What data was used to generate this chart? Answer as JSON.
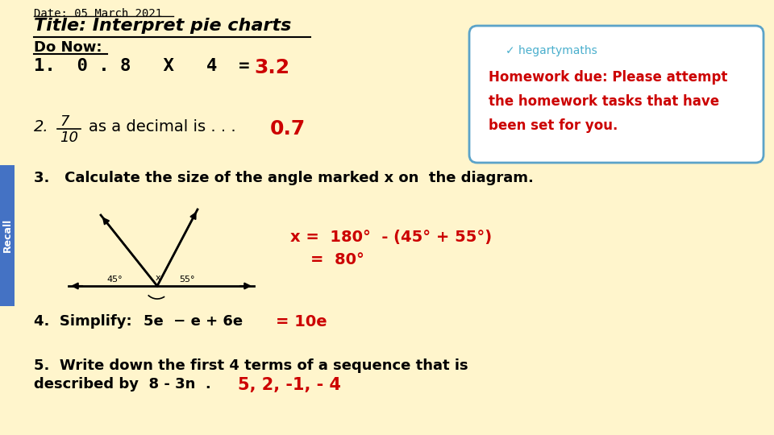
{
  "background_color": "#FFF5CC",
  "date_text": "Date: 05 March 2021",
  "title_text": "Title: Interpret pie charts",
  "do_now_text": "Do Now:",
  "q1_black": "1.  0 . 8   X   4  =",
  "q1_red": "3.2",
  "q2_italic_num": "7",
  "q2_italic_den": "10",
  "q2_black": "as a decimal is . . .",
  "q2_red": "0.7",
  "q3_black": "3.   Calculate the size of the angle marked x on  the diagram.",
  "q3_red_line1": "x =  180°  - (45° + 55°)",
  "q3_red_line2": "=  80°",
  "q4_black1": "4.  Simplify:",
  "q4_black2": "5e  − e + 6e",
  "q4_red": "= 10e",
  "q5_black1": "5.  Write down the first 4 terms of a sequence that is",
  "q5_black2": "described by  8 - 3n  .",
  "q5_red": "5, 2, -1, - 4",
  "hw_red_line1": "Homework due: Please attempt",
  "hw_red_line2": "the homework tasks that have",
  "hw_red_line3": "been set for you.",
  "recall_label": "Recall",
  "red_color": "#CC0000",
  "blue_color": "#4AAFCD",
  "box_border_color": "#5BA3C9",
  "recall_bar_color": "#4472C4",
  "angle_45_label": "45°",
  "angle_x_label": "x",
  "angle_55_label": "55°"
}
